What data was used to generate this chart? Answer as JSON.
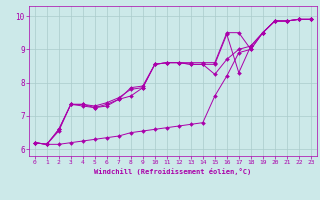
{
  "xlabel": "Windchill (Refroidissement éolien,°C)",
  "xlim": [
    -0.5,
    23.5
  ],
  "ylim": [
    5.8,
    10.3
  ],
  "xticks": [
    0,
    1,
    2,
    3,
    4,
    5,
    6,
    7,
    8,
    9,
    10,
    11,
    12,
    13,
    14,
    15,
    16,
    17,
    18,
    19,
    20,
    21,
    22,
    23
  ],
  "yticks": [
    6,
    7,
    8,
    9,
    10
  ],
  "background_color": "#cce9e9",
  "line_color": "#aa00aa",
  "grid_color": "#aacccc",
  "lines": [
    [
      6.2,
      6.15,
      6.55,
      7.35,
      7.3,
      7.25,
      7.35,
      7.5,
      7.6,
      7.85,
      8.55,
      8.6,
      8.6,
      8.6,
      8.6,
      8.6,
      9.5,
      9.5,
      9.0,
      9.5,
      9.85,
      9.85,
      9.9,
      9.9
    ],
    [
      6.2,
      6.15,
      6.15,
      6.2,
      6.25,
      6.3,
      6.35,
      6.4,
      6.5,
      6.55,
      6.6,
      6.65,
      6.7,
      6.75,
      6.8,
      7.6,
      8.2,
      8.9,
      9.0,
      9.5,
      9.85,
      9.85,
      9.9,
      9.9
    ],
    [
      6.2,
      6.15,
      6.6,
      7.35,
      7.35,
      7.25,
      7.3,
      7.5,
      7.85,
      7.9,
      8.55,
      8.6,
      8.6,
      8.55,
      8.55,
      8.25,
      8.7,
      9.0,
      9.1,
      9.5,
      9.85,
      9.85,
      9.9,
      9.9
    ],
    [
      6.2,
      6.15,
      6.6,
      7.35,
      7.35,
      7.3,
      7.4,
      7.55,
      7.8,
      7.85,
      8.55,
      8.6,
      8.6,
      8.55,
      8.55,
      8.55,
      9.45,
      8.3,
      9.1,
      9.5,
      9.85,
      9.85,
      9.9,
      9.9
    ]
  ]
}
